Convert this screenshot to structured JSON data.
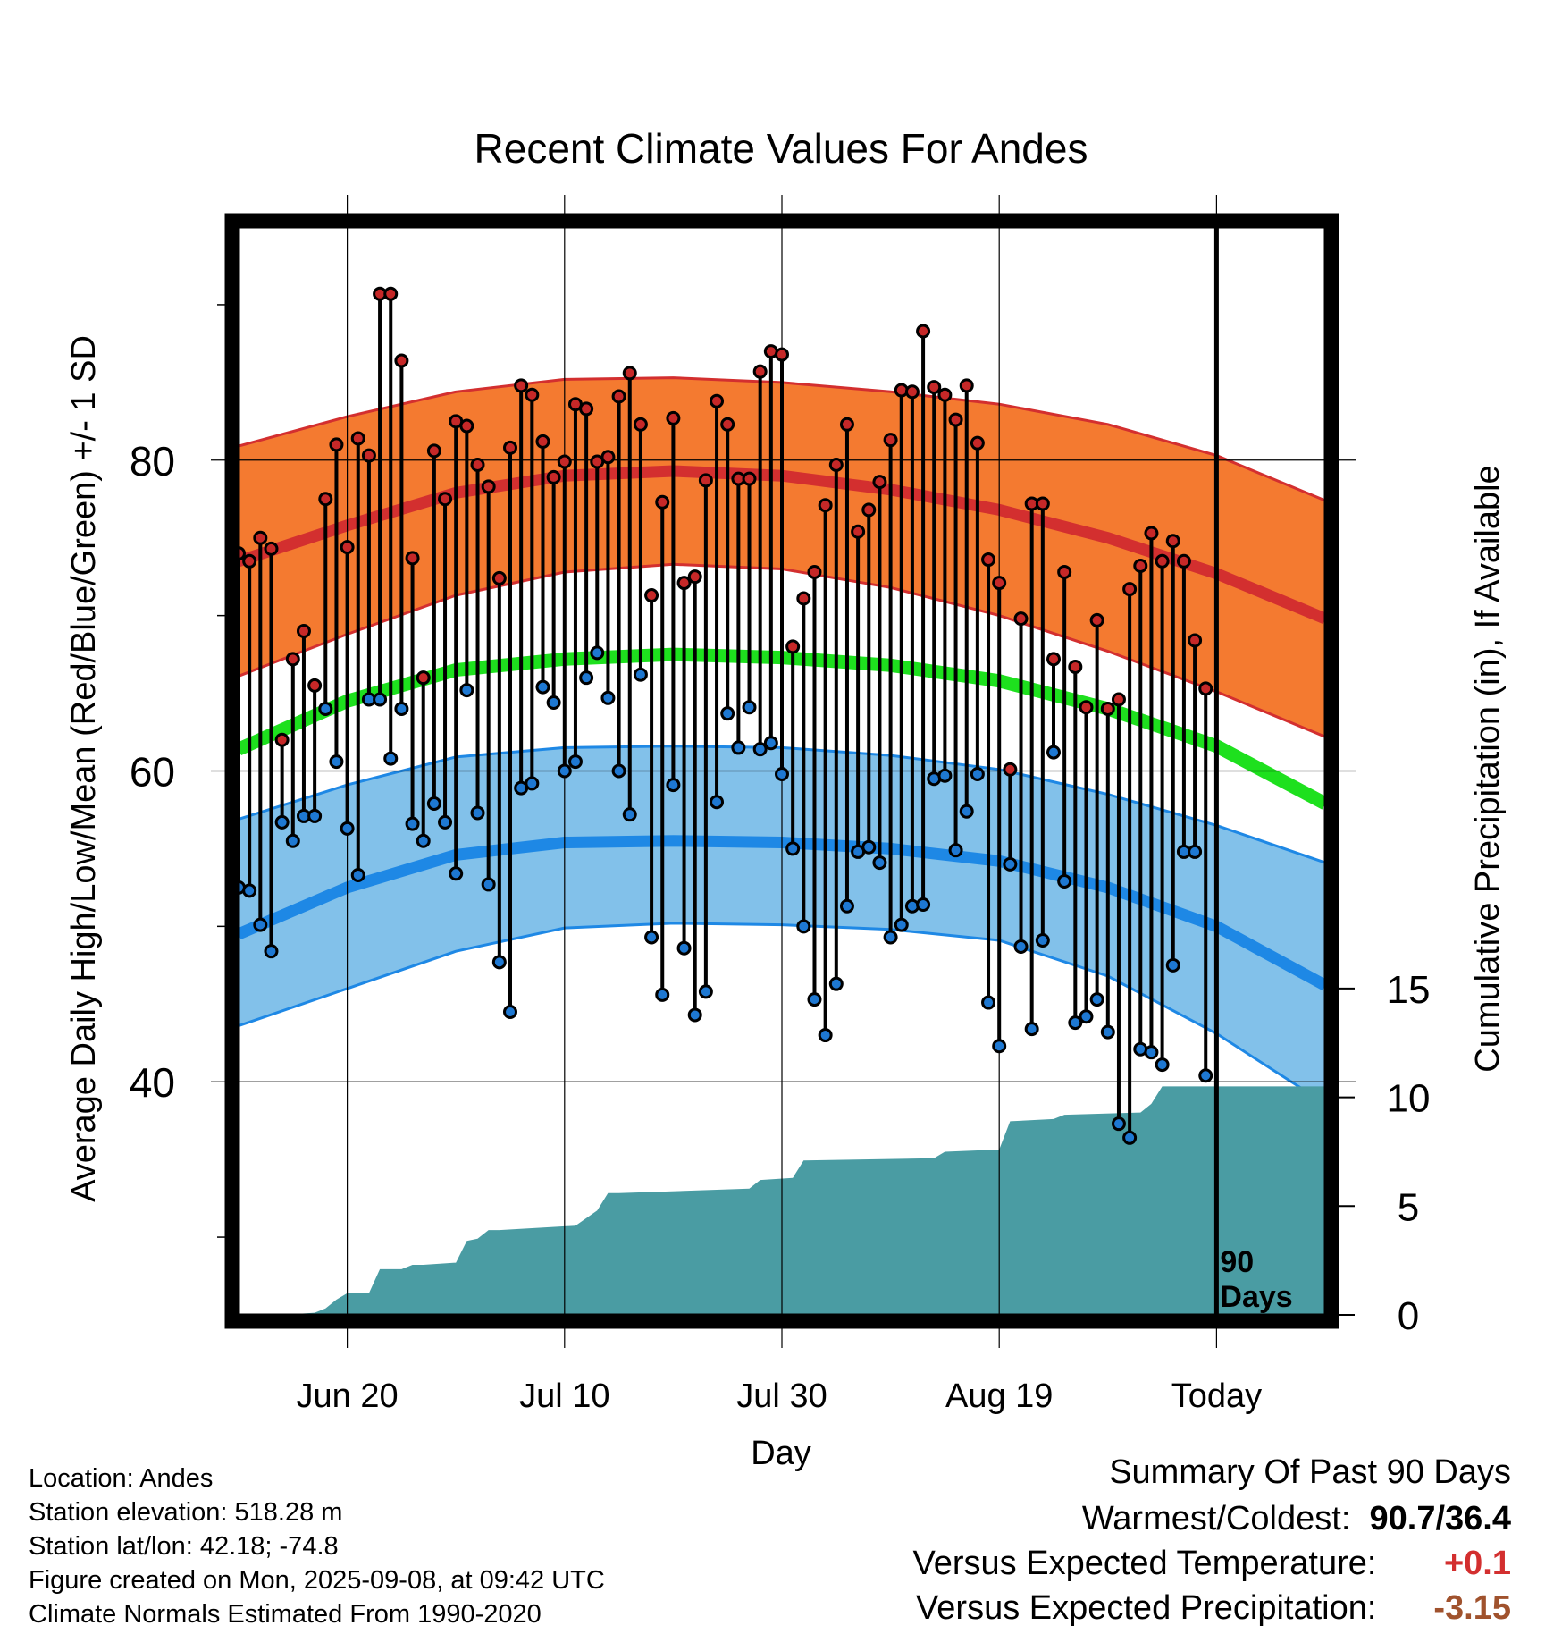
{
  "chart_data": {
    "type": "line",
    "title": "Recent Climate Values For Andes",
    "xlabel": "Day",
    "ylabel": "Average Daily High/Low/Mean (Red/Blue/Green) +/- 1 SD",
    "y2label": "Cumulative Precipitation (in), If Available",
    "ylim": [
      25,
      95
    ],
    "y2lim": [
      0,
      50
    ],
    "yticks": [
      40,
      60,
      80
    ],
    "y2ticks": [
      0,
      5,
      10,
      15
    ],
    "x_axis": {
      "start_date": "2025-06-10",
      "end_date": "2025-09-18",
      "today_date": "2025-09-08",
      "tick_dates": [
        "2025-06-20",
        "2025-07-10",
        "2025-07-30",
        "2025-08-19",
        "2025-09-08"
      ],
      "tick_labels": [
        "Jun 20",
        "Jul 10",
        "Jul 30",
        "Aug 19",
        "Today"
      ]
    },
    "marker_label": "90 Days",
    "grid": true,
    "colors": {
      "high_band": "#f47a30",
      "high_line": "#d32f2f",
      "low_band": "#82c1ea",
      "low_line": "#1e88e5",
      "mean_line": "#1ee01e",
      "precip_fill": "#4a9ca3",
      "high_dot": "#c62828",
      "low_dot": "#1e78d2"
    },
    "normals": {
      "dates": [
        "2025-06-10",
        "2025-06-20",
        "2025-06-30",
        "2025-07-10",
        "2025-07-20",
        "2025-07-30",
        "2025-08-09",
        "2025-08-19",
        "2025-08-29",
        "2025-09-08",
        "2025-09-18"
      ],
      "high_mean": [
        73.5,
        75.8,
        77.9,
        79.0,
        79.3,
        79.0,
        78.1,
        76.8,
        75.0,
        72.7,
        69.8
      ],
      "high_sd_upper": [
        80.9,
        82.8,
        84.4,
        85.2,
        85.3,
        85.0,
        84.4,
        83.6,
        82.3,
        80.3,
        77.4
      ],
      "high_sd_lower": [
        66.1,
        68.8,
        71.3,
        72.8,
        73.3,
        73.0,
        71.8,
        70.0,
        67.7,
        65.1,
        62.2
      ],
      "mean": [
        61.4,
        64.5,
        66.5,
        67.2,
        67.5,
        67.3,
        66.8,
        65.8,
        64.0,
        61.6,
        57.9
      ],
      "low_mean": [
        49.5,
        52.5,
        54.6,
        55.4,
        55.5,
        55.4,
        55.0,
        54.2,
        52.5,
        50.0,
        46.2
      ],
      "low_sd_upper": [
        56.9,
        59.1,
        60.9,
        61.5,
        61.6,
        61.5,
        61.0,
        60.1,
        58.5,
        56.5,
        54.1
      ],
      "low_sd_lower": [
        43.6,
        46.0,
        48.4,
        49.9,
        50.2,
        50.1,
        49.8,
        49.1,
        46.8,
        43.1,
        38.6
      ]
    },
    "daily": {
      "start_date": "2025-06-10",
      "high": [
        74.0,
        73.5,
        75.0,
        74.3,
        62.0,
        67.2,
        69.0,
        65.5,
        77.5,
        81.0,
        74.4,
        81.4,
        80.3,
        90.7,
        90.7,
        86.4,
        73.7,
        66.0,
        80.6,
        77.5,
        82.5,
        82.2,
        79.7,
        78.3,
        72.4,
        80.8,
        84.8,
        84.2,
        81.2,
        78.9,
        79.9,
        83.6,
        83.3,
        79.9,
        80.2,
        84.1,
        85.6,
        82.3,
        71.3,
        77.3,
        82.7,
        72.1,
        72.5,
        78.7,
        83.8,
        82.3,
        78.8,
        78.8,
        85.7,
        87.0,
        86.8,
        68.0,
        71.1,
        72.8,
        77.1,
        79.7,
        82.3,
        75.4,
        76.8,
        78.6,
        81.3,
        84.5,
        84.4,
        88.3,
        84.7,
        84.2,
        82.6,
        84.8,
        81.1,
        73.6,
        72.1,
        60.1,
        69.8,
        77.2,
        77.2,
        67.2,
        72.8,
        66.7,
        64.1,
        69.7,
        64.0,
        64.6,
        71.7,
        73.2,
        75.3,
        73.5,
        74.8,
        73.5,
        68.4,
        65.3
      ],
      "low": [
        52.5,
        52.3,
        50.1,
        48.4,
        56.7,
        55.5,
        57.1,
        57.1,
        64.0,
        60.6,
        56.3,
        53.3,
        64.6,
        64.6,
        60.8,
        64.0,
        56.6,
        55.5,
        57.9,
        56.7,
        53.4,
        65.2,
        57.3,
        52.7,
        47.7,
        44.5,
        58.9,
        59.2,
        65.4,
        64.4,
        60.0,
        60.6,
        66.0,
        67.6,
        64.7,
        60.0,
        57.2,
        66.2,
        49.3,
        45.6,
        59.1,
        48.6,
        44.3,
        45.8,
        58.0,
        63.7,
        61.5,
        64.1,
        61.4,
        61.8,
        59.8,
        55.0,
        50.0,
        45.3,
        43.0,
        46.3,
        51.3,
        54.8,
        55.1,
        54.1,
        49.3,
        50.1,
        51.3,
        51.4,
        59.5,
        59.7,
        54.9,
        57.4,
        59.8,
        45.1,
        42.3,
        54.0,
        48.7,
        43.4,
        49.1,
        61.2,
        52.9,
        43.8,
        44.2,
        45.3,
        43.2,
        37.3,
        36.4,
        42.1,
        41.9,
        41.1,
        47.5,
        54.8,
        54.8,
        40.4
      ]
    },
    "precip": {
      "dates": [
        "2025-06-10",
        "2025-06-14",
        "2025-06-17",
        "2025-06-18",
        "2025-06-19",
        "2025-06-20",
        "2025-06-22",
        "2025-06-23",
        "2025-06-25",
        "2025-06-26",
        "2025-06-27",
        "2025-06-30",
        "2025-07-01",
        "2025-07-02",
        "2025-07-03",
        "2025-07-04",
        "2025-07-11",
        "2025-07-13",
        "2025-07-14",
        "2025-07-15",
        "2025-07-27",
        "2025-07-28",
        "2025-07-31",
        "2025-08-01",
        "2025-08-13",
        "2025-08-14",
        "2025-08-19",
        "2025-08-20",
        "2025-08-24",
        "2025-08-25",
        "2025-09-01",
        "2025-09-02",
        "2025-09-03",
        "2025-09-08",
        "2025-09-18"
      ],
      "cumulative": [
        0.0,
        0.0,
        0.1,
        0.3,
        0.7,
        1.0,
        1.0,
        2.1,
        2.1,
        2.3,
        2.3,
        2.4,
        3.4,
        3.5,
        3.9,
        3.9,
        4.1,
        4.8,
        5.6,
        5.6,
        5.8,
        6.2,
        6.3,
        7.1,
        7.2,
        7.5,
        7.6,
        8.9,
        9.0,
        9.2,
        9.3,
        9.7,
        10.5,
        10.5,
        10.5
      ]
    }
  },
  "footer": {
    "location": "Location: Andes",
    "elevation": "Station elevation: 518.28 m",
    "latlon": "Station lat/lon: 42.18; -74.8",
    "created": "Figure created on Mon, 2025-09-08, at 09:42 UTC",
    "normals_source": "Climate Normals Estimated From 1990-2020"
  },
  "summary": {
    "title": "Summary Of Past 90 Days",
    "extremes_label": "Warmest/Coldest:",
    "extremes_value": "90.7/36.4",
    "temp_label": "Versus Expected Temperature:",
    "temp_value": "+0.1",
    "temp_color": "#d32f2f",
    "precip_label": "Versus Expected Precipitation:",
    "precip_value": "-3.15",
    "precip_color": "#a0522d"
  }
}
